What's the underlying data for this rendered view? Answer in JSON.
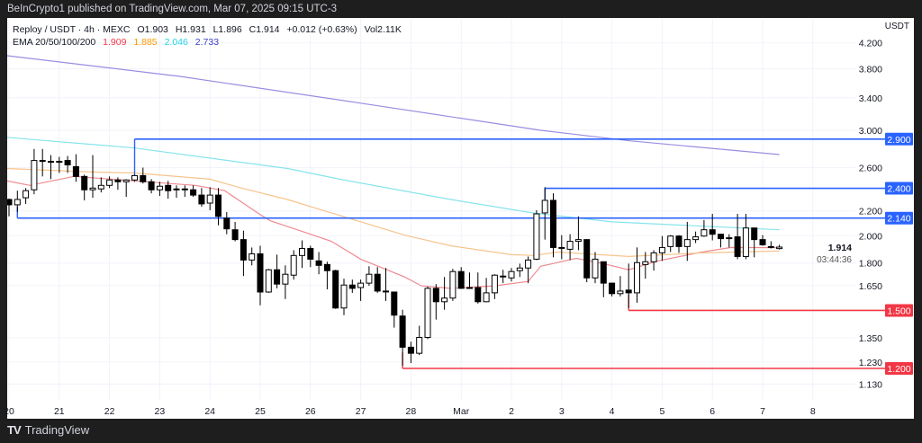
{
  "header": {
    "publisher_line": "BeInCrypto1 published on TradingView.com, Mar 07, 2025 09:15 UTC-3"
  },
  "legend": {
    "symbol": "Reploy / USDT · 4h · MEXC",
    "open": "O1.903",
    "high": "H1.931",
    "low": "L1.896",
    "close": "C1.914",
    "change": "+0.012 (+0.63%)",
    "volume": "Vol2.11K",
    "ema_label": "EMA 20/50/100/200",
    "ema_values": [
      {
        "value": "1.909",
        "color": "#f23645"
      },
      {
        "value": "1.885",
        "color": "#ff9800"
      },
      {
        "value": "2.046",
        "color": "#22d3e6"
      },
      {
        "value": "2.733",
        "color": "#3d3dc8"
      }
    ]
  },
  "footer": {
    "brand": "TradingView"
  },
  "chart_data": {
    "type": "candlestick",
    "title": "",
    "y_axis": {
      "unit_label": "USDT",
      "scale": "log",
      "ticks": [
        "4.200",
        "3.800",
        "3.400",
        "3.000",
        "2.600",
        "2.200",
        "2.000",
        "1.800",
        "1.650",
        "1.350",
        "1.230",
        "1.130"
      ],
      "range": [
        1.1,
        4.3
      ]
    },
    "x_axis": {
      "ticks": [
        {
          "label": "20",
          "date": "2025-02-20 00:00"
        },
        {
          "label": "21",
          "date": "2025-02-21 00:00"
        },
        {
          "label": "22",
          "date": "2025-02-22 00:00"
        },
        {
          "label": "23",
          "date": "2025-02-23 00:00"
        },
        {
          "label": "24",
          "date": "2025-02-24 00:00"
        },
        {
          "label": "25",
          "date": "2025-02-25 00:00"
        },
        {
          "label": "26",
          "date": "2025-02-26 00:00"
        },
        {
          "label": "27",
          "date": "2025-02-27 00:00"
        },
        {
          "label": "28",
          "date": "2025-02-28 00:00"
        },
        {
          "label": "Mar",
          "date": "2025-03-01 00:00"
        },
        {
          "label": "2",
          "date": "2025-03-02 00:00"
        },
        {
          "label": "3",
          "date": "2025-03-03 00:00"
        },
        {
          "label": "4",
          "date": "2025-03-04 00:00"
        },
        {
          "label": "5",
          "date": "2025-03-05 00:00"
        },
        {
          "label": "6",
          "date": "2025-03-06 00:00"
        },
        {
          "label": "7",
          "date": "2025-03-07 00:00"
        },
        {
          "label": "8",
          "date": "2025-03-08 00:00"
        }
      ]
    },
    "grid": true,
    "last_price": {
      "value": "1.914",
      "countdown": "03:44:36"
    },
    "candles_columns": [
      "time",
      "open",
      "high",
      "low",
      "close"
    ],
    "candles": [
      [
        "2025-02-19 20:00",
        2.354,
        2.546,
        2.221,
        2.299
      ],
      [
        "2025-02-20 00:00",
        2.299,
        2.306,
        2.154,
        2.252
      ],
      [
        "2025-02-20 04:00",
        2.252,
        2.378,
        2.191,
        2.299
      ],
      [
        "2025-02-20 08:00",
        2.314,
        2.402,
        2.26,
        2.378
      ],
      [
        "2025-02-20 12:00",
        2.386,
        2.792,
        2.346,
        2.671
      ],
      [
        "2025-02-20 16:00",
        2.671,
        2.792,
        2.512,
        2.67
      ],
      [
        "2025-02-20 20:00",
        2.662,
        2.727,
        2.486,
        2.662
      ],
      [
        "2025-02-21 00:00",
        2.662,
        2.709,
        2.546,
        2.662
      ],
      [
        "2025-02-21 04:00",
        2.671,
        2.718,
        2.546,
        2.626
      ],
      [
        "2025-02-21 08:00",
        2.608,
        2.736,
        2.461,
        2.512
      ],
      [
        "2025-02-21 12:00",
        2.512,
        2.529,
        2.291,
        2.386
      ],
      [
        "2025-02-21 16:00",
        2.386,
        2.727,
        2.314,
        2.402
      ],
      [
        "2025-02-21 20:00",
        2.394,
        2.503,
        2.362,
        2.427
      ],
      [
        "2025-02-22 00:00",
        2.427,
        2.512,
        2.402,
        2.478
      ],
      [
        "2025-02-22 04:00",
        2.478,
        2.503,
        2.386,
        2.461
      ],
      [
        "2025-02-22 08:00",
        2.461,
        2.486,
        2.322,
        2.478
      ],
      [
        "2025-02-22 12:00",
        2.478,
        2.529,
        2.461,
        2.52
      ],
      [
        "2025-02-22 16:00",
        2.52,
        2.599,
        2.444,
        2.461
      ],
      [
        "2025-02-22 20:00",
        2.461,
        2.486,
        2.354,
        2.386
      ],
      [
        "2025-02-23 00:00",
        2.386,
        2.461,
        2.33,
        2.419
      ],
      [
        "2025-02-23 04:00",
        2.427,
        2.469,
        2.306,
        2.378
      ],
      [
        "2025-02-23 08:00",
        2.394,
        2.427,
        2.314,
        2.39
      ],
      [
        "2025-02-23 12:00",
        2.394,
        2.427,
        2.322,
        2.392
      ],
      [
        "2025-02-23 16:00",
        2.386,
        2.427,
        2.322,
        2.338
      ],
      [
        "2025-02-23 20:00",
        2.338,
        2.402,
        2.236,
        2.26
      ],
      [
        "2025-02-24 00:00",
        2.267,
        2.41,
        2.206,
        2.338
      ],
      [
        "2025-02-24 04:00",
        2.338,
        2.402,
        2.081,
        2.154
      ],
      [
        "2025-02-24 08:00",
        2.139,
        2.19,
        2.011,
        2.053
      ],
      [
        "2025-02-24 12:00",
        2.046,
        2.109,
        1.957,
        1.97
      ],
      [
        "2025-02-24 16:00",
        1.97,
        2.039,
        1.712,
        1.821
      ],
      [
        "2025-02-24 20:00",
        1.821,
        1.911,
        1.784,
        1.865
      ],
      [
        "2025-02-25 00:00",
        1.865,
        1.924,
        1.53,
        1.61
      ],
      [
        "2025-02-25 04:00",
        1.61,
        1.76,
        1.605,
        1.754
      ],
      [
        "2025-02-25 08:00",
        1.754,
        1.859,
        1.633,
        1.66
      ],
      [
        "2025-02-25 12:00",
        1.66,
        1.784,
        1.567,
        1.724
      ],
      [
        "2025-02-25 16:00",
        1.718,
        1.891,
        1.689,
        1.853
      ],
      [
        "2025-02-25 20:00",
        1.853,
        1.964,
        1.766,
        1.904
      ],
      [
        "2025-02-26 00:00",
        1.904,
        1.924,
        1.772,
        1.827
      ],
      [
        "2025-02-26 04:00",
        1.815,
        1.878,
        1.724,
        1.784
      ],
      [
        "2025-02-26 08:00",
        1.79,
        1.809,
        1.627,
        1.748
      ],
      [
        "2025-02-26 12:00",
        1.748,
        1.754,
        1.509,
        1.514
      ],
      [
        "2025-02-26 16:00",
        1.514,
        1.695,
        1.473,
        1.654
      ],
      [
        "2025-02-26 20:00",
        1.654,
        1.689,
        1.605,
        1.633
      ],
      [
        "2025-02-27 00:00",
        1.638,
        1.689,
        1.556,
        1.666
      ],
      [
        "2025-02-27 04:00",
        1.666,
        1.778,
        1.649,
        1.724
      ],
      [
        "2025-02-27 08:00",
        1.724,
        1.772,
        1.605,
        1.616
      ],
      [
        "2025-02-27 12:00",
        1.616,
        1.766,
        1.556,
        1.614
      ],
      [
        "2025-02-27 16:00",
        1.61,
        1.612,
        1.404,
        1.473
      ],
      [
        "2025-02-27 20:00",
        1.468,
        1.504,
        1.212,
        1.302
      ],
      [
        "2025-02-28 00:00",
        1.302,
        1.33,
        1.225,
        1.272
      ],
      [
        "2025-02-28 04:00",
        1.272,
        1.414,
        1.263,
        1.352
      ],
      [
        "2025-02-28 08:00",
        1.352,
        1.644,
        1.343,
        1.633
      ],
      [
        "2025-02-28 12:00",
        1.633,
        1.66,
        1.448,
        1.551
      ],
      [
        "2025-02-28 16:00",
        1.551,
        1.706,
        1.504,
        1.573
      ],
      [
        "2025-02-28 20:00",
        1.573,
        1.76,
        1.556,
        1.742
      ],
      [
        "2025-03-01 00:00",
        1.742,
        1.772,
        1.63,
        1.633
      ],
      [
        "2025-03-01 04:00",
        1.638,
        1.736,
        1.633,
        1.636
      ],
      [
        "2025-03-01 08:00",
        1.638,
        1.736,
        1.54,
        1.551
      ],
      [
        "2025-03-01 12:00",
        1.551,
        1.7,
        1.548,
        1.605
      ],
      [
        "2025-03-01 16:00",
        1.605,
        1.724,
        1.567,
        1.718
      ],
      [
        "2025-03-01 20:00",
        1.712,
        1.754,
        1.666,
        1.71
      ],
      [
        "2025-03-02 00:00",
        1.7,
        1.766,
        1.677,
        1.742
      ],
      [
        "2025-03-02 04:00",
        1.748,
        1.796,
        1.706,
        1.766
      ],
      [
        "2025-03-02 08:00",
        1.766,
        1.846,
        1.666,
        1.821
      ],
      [
        "2025-03-02 12:00",
        1.827,
        2.206,
        1.821,
        2.175
      ],
      [
        "2025-03-02 16:00",
        2.183,
        2.41,
        1.97,
        2.291
      ],
      [
        "2025-03-02 20:00",
        2.291,
        2.354,
        1.84,
        1.911
      ],
      [
        "2025-03-03 00:00",
        1.911,
        2.004,
        1.827,
        1.908
      ],
      [
        "2025-03-03 04:00",
        1.898,
        2.011,
        1.821,
        1.957
      ],
      [
        "2025-03-03 08:00",
        1.957,
        2.154,
        1.891,
        1.97
      ],
      [
        "2025-03-03 12:00",
        1.97,
        1.972,
        1.672,
        1.7
      ],
      [
        "2025-03-03 16:00",
        1.7,
        1.878,
        1.666,
        1.827
      ],
      [
        "2025-03-03 20:00",
        1.809,
        1.811,
        1.578,
        1.666
      ],
      [
        "2025-03-04 00:00",
        1.666,
        1.668,
        1.583,
        1.6
      ],
      [
        "2025-03-04 04:00",
        1.6,
        1.712,
        1.583,
        1.616
      ],
      [
        "2025-03-04 08:00",
        1.622,
        1.796,
        1.514,
        1.605
      ],
      [
        "2025-03-04 12:00",
        1.605,
        1.911,
        1.545,
        1.803
      ],
      [
        "2025-03-04 16:00",
        1.79,
        1.878,
        1.695,
        1.809
      ],
      [
        "2025-03-04 20:00",
        1.809,
        1.891,
        1.748,
        1.872
      ],
      [
        "2025-03-05 00:00",
        1.872,
        1.997,
        1.815,
        1.911
      ],
      [
        "2025-03-05 04:00",
        1.918,
        2.004,
        1.878,
        1.997
      ],
      [
        "2025-03-05 08:00",
        1.997,
        2.004,
        1.872,
        1.918
      ],
      [
        "2025-03-05 12:00",
        1.918,
        2.109,
        1.815,
        1.97
      ],
      [
        "2025-03-05 16:00",
        1.97,
        2.032,
        1.944,
        1.991
      ],
      [
        "2025-03-05 20:00",
        1.997,
        2.124,
        1.991,
        2.046
      ],
      [
        "2025-03-06 00:00",
        2.046,
        2.175,
        1.964,
        2.011
      ],
      [
        "2025-03-06 04:00",
        2.011,
        2.013,
        1.911,
        1.977
      ],
      [
        "2025-03-06 08:00",
        1.984,
        2.011,
        1.911,
        1.982
      ],
      [
        "2025-03-06 12:00",
        1.991,
        2.175,
        1.827,
        1.846
      ],
      [
        "2025-03-06 16:00",
        1.846,
        2.175,
        1.827,
        2.06
      ],
      [
        "2025-03-06 20:00",
        2.06,
        2.062,
        1.84,
        1.97
      ],
      [
        "2025-03-07 00:00",
        1.97,
        2.004,
        1.924,
        1.931
      ],
      [
        "2025-03-07 04:00",
        1.918,
        1.957,
        1.904,
        1.916
      ],
      [
        "2025-03-07 08:00",
        1.903,
        1.931,
        1.896,
        1.914
      ]
    ],
    "ema_series": [
      {
        "period": 20,
        "color": "#ef8a8f",
        "points": [
          [
            "2025-02-19 23:00",
            2.469
          ],
          [
            "2025-02-20 10:00",
            2.427
          ],
          [
            "2025-02-21 07:00",
            2.512
          ],
          [
            "2025-02-22 12:00",
            2.469
          ],
          [
            "2025-02-23 17:00",
            2.427
          ],
          [
            "2025-02-24 07:00",
            2.378
          ],
          [
            "2025-02-25 00:00",
            2.168
          ],
          [
            "2025-02-25 05:00",
            2.117
          ],
          [
            "2025-02-25 19:00",
            2.039
          ],
          [
            "2025-02-26 10:00",
            1.957
          ],
          [
            "2025-02-27 00:00",
            1.827
          ],
          [
            "2025-02-27 21:00",
            1.706
          ],
          [
            "2025-02-28 05:00",
            1.649
          ],
          [
            "2025-02-28 19:00",
            1.633
          ],
          [
            "2025-03-01 16:00",
            1.649
          ],
          [
            "2025-03-02 08:00",
            1.677
          ],
          [
            "2025-03-02 14:00",
            1.778
          ],
          [
            "2025-03-02 22:00",
            1.803
          ],
          [
            "2025-03-03 07:00",
            1.833
          ],
          [
            "2025-03-03 20:00",
            1.796
          ],
          [
            "2025-03-04 08:00",
            1.754
          ],
          [
            "2025-03-04 22:00",
            1.815
          ],
          [
            "2025-03-05 19:00",
            1.878
          ],
          [
            "2025-03-06 09:00",
            1.911
          ],
          [
            "2025-03-07 08:00",
            1.909
          ]
        ]
      },
      {
        "period": 50,
        "color": "#f6c48e",
        "points": [
          [
            "2025-02-19 23:00",
            2.59
          ],
          [
            "2025-02-21 15:00",
            2.555
          ],
          [
            "2025-02-22 12:00",
            2.546
          ],
          [
            "2025-02-24 00:00",
            2.486
          ],
          [
            "2025-02-24 15:00",
            2.402
          ],
          [
            "2025-02-25 13:00",
            2.299
          ],
          [
            "2025-02-26 10:00",
            2.183
          ],
          [
            "2025-02-27 21:00",
            2.004
          ],
          [
            "2025-02-28 19:00",
            1.924
          ],
          [
            "2025-03-02 00:00",
            1.859
          ],
          [
            "2025-03-02 11:00",
            1.853
          ],
          [
            "2025-03-02 22:00",
            1.878
          ],
          [
            "2025-03-04 08:00",
            1.846
          ],
          [
            "2025-03-05 19:00",
            1.872
          ],
          [
            "2025-03-07 08:00",
            1.885
          ]
        ]
      },
      {
        "period": 100,
        "color": "#86e4ec",
        "points": [
          [
            "2025-02-19 23:00",
            2.919
          ],
          [
            "2025-02-22 12:00",
            2.802
          ],
          [
            "2025-02-25 13:00",
            2.59
          ],
          [
            "2025-02-26 14:00",
            2.486
          ],
          [
            "2025-02-28 19:00",
            2.299
          ],
          [
            "2025-03-02 10:00",
            2.183
          ],
          [
            "2025-03-04 00:00",
            2.109
          ],
          [
            "2025-03-07 08:00",
            2.046
          ]
        ]
      },
      {
        "period": 200,
        "color": "#9b8ce0",
        "points": [
          [
            "2025-02-19 23:00",
            3.997
          ],
          [
            "2025-02-23 10:00",
            3.69
          ],
          [
            "2025-02-27 00:00",
            3.33
          ],
          [
            "2025-03-02 14:00",
            3.0
          ],
          [
            "2025-03-04 09:00",
            2.88
          ],
          [
            "2025-03-07 08:00",
            2.733
          ]
        ]
      }
    ],
    "levels": [
      {
        "label": "2.900",
        "price": 2.9,
        "start": "2025-02-22 12:00",
        "anchor_price": 2.52,
        "color": "#2962ff"
      },
      {
        "label": "2.400",
        "price": 2.4,
        "start": "2025-03-02 16:00",
        "anchor_price": 2.3,
        "color": "#2962ff"
      },
      {
        "label": "2.140",
        "price": 2.14,
        "start": "2025-02-20 04:00",
        "anchor_price": 2.236,
        "color": "#2962ff"
      },
      {
        "label": "1.500",
        "price": 1.5,
        "start": "2025-03-04 08:00",
        "anchor_price": 1.594,
        "color": "#f23645"
      },
      {
        "label": "1.200",
        "price": 1.2,
        "start": "2025-02-27 20:00",
        "anchor_price": 1.276,
        "color": "#f23645"
      }
    ]
  }
}
